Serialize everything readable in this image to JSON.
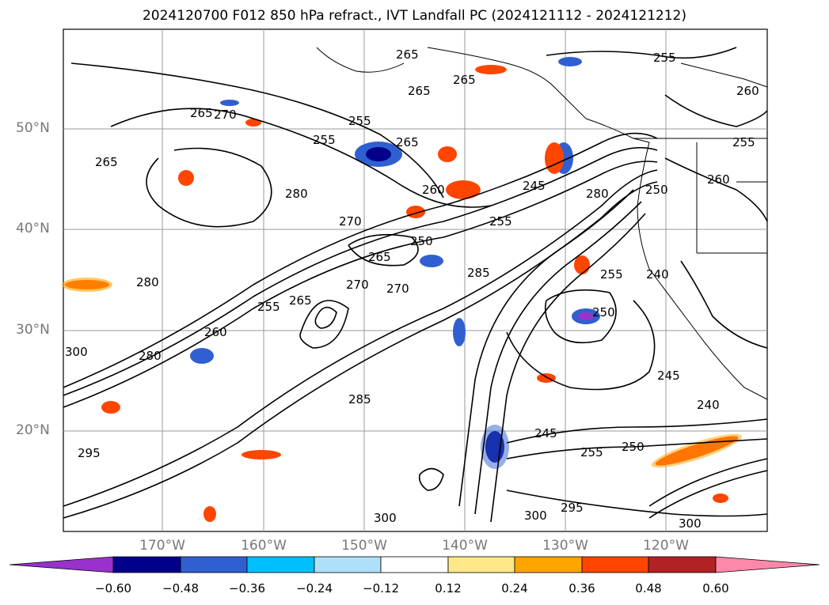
{
  "title": "2024120700 F012 850 hPa refract., IVT Landfall PC (2024121112 - 2024121212)",
  "lat_labels": [
    "50°N",
    "40°N",
    "30°N",
    "20°N"
  ],
  "lon_labels": [
    "170°W",
    "160°W",
    "150°W",
    "140°W",
    "130°W",
    "120°W"
  ],
  "colorbar": {
    "ticks": [
      "−0.60",
      "−0.48",
      "−0.36",
      "−0.24",
      "−0.12",
      "0.12",
      "0.24",
      "0.36",
      "0.48",
      "0.60"
    ],
    "colors": [
      "#9932CC",
      "#00008B",
      "#3060D0",
      "#00BFFF",
      "#ADE1FA",
      "#FFFFFF",
      "#FFE88A",
      "#FFA500",
      "#FF4500",
      "#B22222",
      "#FF88AA"
    ]
  },
  "contour_labels": [
    "265",
    "255",
    "265",
    "265",
    "265",
    "255",
    "260",
    "270",
    "255",
    "265",
    "255",
    "265",
    "280",
    "260",
    "260",
    "250",
    "245",
    "255",
    "270",
    "250",
    "285",
    "255",
    "265",
    "280",
    "270",
    "255",
    "265",
    "280",
    "300",
    "250",
    "240",
    "260",
    "270",
    "245",
    "240",
    "280",
    "295",
    "250",
    "255",
    "245",
    "300",
    "295",
    "300",
    "285",
    "300"
  ]
}
